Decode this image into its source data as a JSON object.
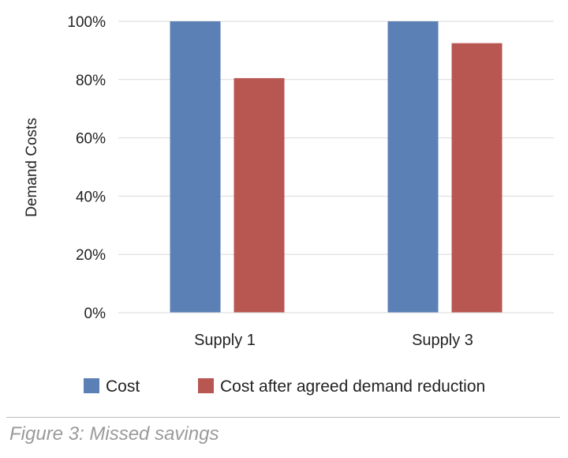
{
  "chart_data": {
    "type": "bar",
    "ylabel": "Demand Costs",
    "xlabel": "",
    "categories": [
      "Supply 1",
      "Supply 3"
    ],
    "series": [
      {
        "name": "Cost",
        "values": [
          100,
          100
        ],
        "color": "#5a80b5"
      },
      {
        "name": "Cost after agreed demand reduction",
        "values": [
          80.5,
          92.5
        ],
        "color": "#b85651"
      }
    ],
    "ylim": [
      0,
      100
    ],
    "yticks": [
      0,
      20,
      40,
      60,
      80,
      100
    ],
    "ytick_labels": [
      "0%",
      "20%",
      "40%",
      "60%",
      "80%",
      "100%"
    ],
    "grid": true,
    "legend_position": "bottom"
  },
  "caption": "Figure 3: Missed savings"
}
